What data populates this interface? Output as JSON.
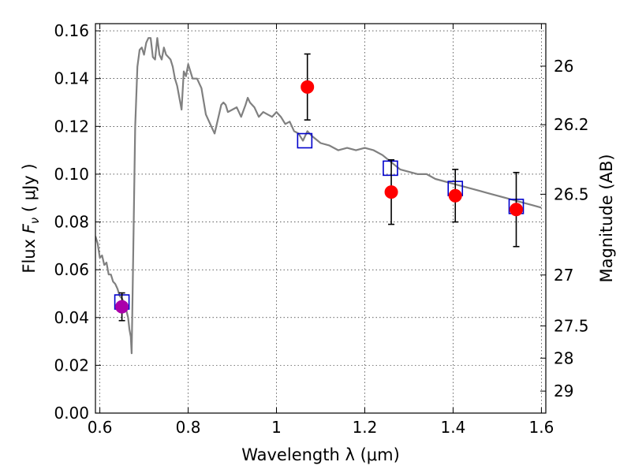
{
  "chart_data": {
    "type": "scatter",
    "xlabel": "Wavelength  λ (μm)",
    "ylabel": "Flux  F_ν  ( μJy )",
    "ylabel_right": "Magnitude (AB)",
    "xlim": [
      0.59,
      1.61
    ],
    "ylim": [
      0.0,
      0.163
    ],
    "grid": true,
    "x_ticks": [
      {
        "value": 0.6,
        "label": "0.6"
      },
      {
        "value": 0.8,
        "label": "0.8"
      },
      {
        "value": 1.0,
        "label": "1"
      },
      {
        "value": 1.2,
        "label": "1.2"
      },
      {
        "value": 1.4,
        "label": "1.4"
      },
      {
        "value": 1.6,
        "label": "1.6"
      }
    ],
    "y_ticks": [
      {
        "value": 0.0,
        "label": "0.00"
      },
      {
        "value": 0.02,
        "label": "0.02"
      },
      {
        "value": 0.04,
        "label": "0.04"
      },
      {
        "value": 0.06,
        "label": "0.06"
      },
      {
        "value": 0.08,
        "label": "0.08"
      },
      {
        "value": 0.1,
        "label": "0.10"
      },
      {
        "value": 0.12,
        "label": "0.12"
      },
      {
        "value": 0.14,
        "label": "0.14"
      },
      {
        "value": 0.16,
        "label": "0.16"
      }
    ],
    "right_ticks": [
      {
        "label": "26",
        "flux": 0.1452
      },
      {
        "label": "26.2",
        "flux": 0.1207
      },
      {
        "label": "26.5",
        "flux": 0.0916
      },
      {
        "label": "27",
        "flux": 0.0578
      },
      {
        "label": "27.5",
        "flux": 0.0365
      },
      {
        "label": "28",
        "flux": 0.023
      },
      {
        "label": "29",
        "flux": 0.0092
      }
    ],
    "series": [
      {
        "type": "line",
        "color": "#808080",
        "x": [
          0.59,
          0.595,
          0.6,
          0.605,
          0.61,
          0.615,
          0.62,
          0.625,
          0.63,
          0.635,
          0.64,
          0.645,
          0.65,
          0.655,
          0.66,
          0.664,
          0.667,
          0.67,
          0.672,
          0.675,
          0.68,
          0.685,
          0.69,
          0.695,
          0.7,
          0.705,
          0.71,
          0.715,
          0.72,
          0.725,
          0.73,
          0.735,
          0.74,
          0.745,
          0.75,
          0.755,
          0.76,
          0.765,
          0.77,
          0.775,
          0.78,
          0.785,
          0.79,
          0.795,
          0.8,
          0.81,
          0.82,
          0.83,
          0.84,
          0.85,
          0.86,
          0.87,
          0.875,
          0.88,
          0.885,
          0.89,
          0.9,
          0.91,
          0.92,
          0.93,
          0.935,
          0.94,
          0.95,
          0.96,
          0.97,
          0.98,
          0.99,
          1.0,
          1.01,
          1.02,
          1.03,
          1.04,
          1.05,
          1.06,
          1.07,
          1.08,
          1.1,
          1.12,
          1.14,
          1.16,
          1.18,
          1.2,
          1.22,
          1.24,
          1.26,
          1.28,
          1.3,
          1.32,
          1.34,
          1.36,
          1.38,
          1.4,
          1.42,
          1.44,
          1.46,
          1.48,
          1.5,
          1.52,
          1.54,
          1.56,
          1.58,
          1.6
        ],
        "y": [
          0.074,
          0.071,
          0.065,
          0.066,
          0.062,
          0.063,
          0.058,
          0.058,
          0.055,
          0.054,
          0.052,
          0.049,
          0.048,
          0.046,
          0.043,
          0.04,
          0.035,
          0.032,
          0.025,
          0.06,
          0.12,
          0.145,
          0.152,
          0.153,
          0.15,
          0.155,
          0.157,
          0.157,
          0.149,
          0.148,
          0.157,
          0.15,
          0.148,
          0.153,
          0.15,
          0.149,
          0.148,
          0.145,
          0.14,
          0.137,
          0.132,
          0.127,
          0.143,
          0.141,
          0.146,
          0.14,
          0.14,
          0.136,
          0.125,
          0.121,
          0.117,
          0.125,
          0.129,
          0.13,
          0.129,
          0.126,
          0.127,
          0.128,
          0.124,
          0.129,
          0.132,
          0.13,
          0.128,
          0.124,
          0.126,
          0.125,
          0.124,
          0.126,
          0.124,
          0.121,
          0.122,
          0.118,
          0.117,
          0.114,
          0.118,
          0.116,
          0.113,
          0.112,
          0.11,
          0.111,
          0.11,
          0.111,
          0.11,
          0.108,
          0.105,
          0.102,
          0.101,
          0.1,
          0.1,
          0.098,
          0.097,
          0.096,
          0.095,
          0.094,
          0.093,
          0.092,
          0.091,
          0.09,
          0.089,
          0.088,
          0.087,
          0.086
        ]
      },
      {
        "type": "markers",
        "marker": "square",
        "color": "#0000cc",
        "x": [
          0.65,
          1.064,
          1.258,
          1.405,
          1.543
        ],
        "y": [
          0.0465,
          0.114,
          0.1025,
          0.094,
          0.0865
        ]
      },
      {
        "type": "errorbar",
        "marker": "circle",
        "color": "#ff0000",
        "x": [
          1.07,
          1.26,
          1.405,
          1.543
        ],
        "y": [
          0.1365,
          0.0925,
          0.091,
          0.0852
        ],
        "yerr": [
          0.0138,
          0.0135,
          0.011,
          0.0155
        ]
      },
      {
        "type": "errorbar",
        "marker": "circle",
        "color": "#aa00aa",
        "x": [
          0.65
        ],
        "y": [
          0.0445
        ],
        "yerr": [
          0.0058
        ]
      }
    ]
  }
}
